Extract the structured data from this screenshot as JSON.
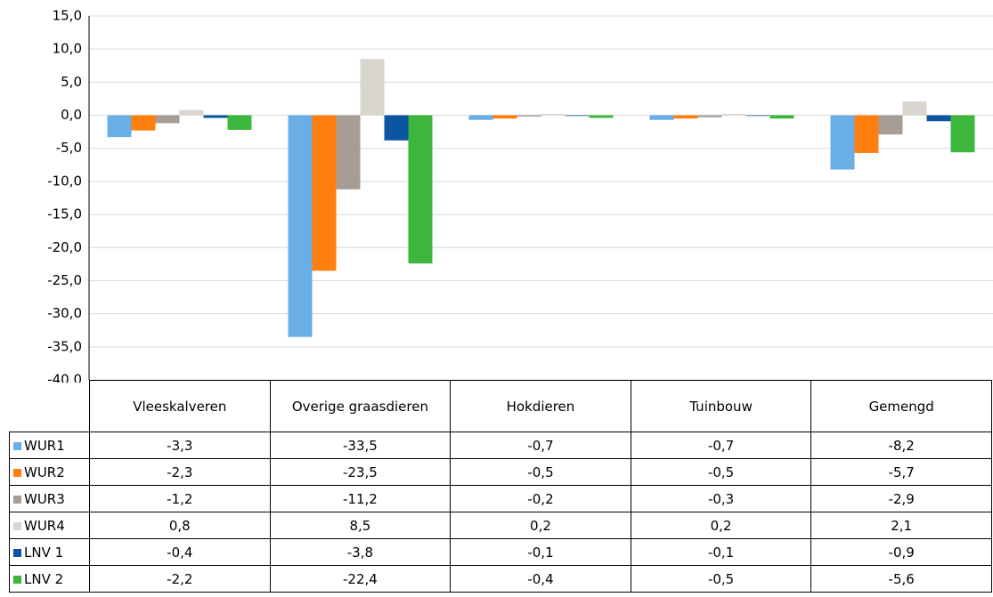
{
  "chart_data": {
    "type": "bar",
    "categories": [
      "Vleeskalveren",
      "Overige graasdieren",
      "Hokdieren",
      "Tuinbouw",
      "Gemengd"
    ],
    "series": [
      {
        "name": "WUR1",
        "color": "#6aaee6",
        "values": [
          -3.3,
          -33.5,
          -0.7,
          -0.7,
          -8.2
        ],
        "value_labels": [
          "-3,3",
          "-33,5",
          "-0,7",
          "-0,7",
          "-8,2"
        ]
      },
      {
        "name": "WUR2",
        "color": "#ff7f0e",
        "values": [
          -2.3,
          -23.5,
          -0.5,
          -0.5,
          -5.7
        ],
        "value_labels": [
          "-2,3",
          "-23,5",
          "-0,5",
          "-0,5",
          "-5,7"
        ]
      },
      {
        "name": "WUR3",
        "color": "#a59d96",
        "values": [
          -1.2,
          -11.2,
          -0.2,
          -0.3,
          -2.9
        ],
        "value_labels": [
          "-1,2",
          "-11,2",
          "-0,2",
          "-0,3",
          "-2,9"
        ]
      },
      {
        "name": "WUR4",
        "color": "#d9d6cf",
        "values": [
          0.8,
          8.5,
          0.2,
          0.2,
          2.1
        ],
        "value_labels": [
          "0,8",
          "8,5",
          "0,2",
          "0,2",
          "2,1"
        ]
      },
      {
        "name": "LNV 1",
        "color": "#0b56a3",
        "values": [
          -0.4,
          -3.8,
          -0.1,
          -0.1,
          -0.9
        ],
        "value_labels": [
          "-0,4",
          "-3,8",
          "-0,1",
          "-0,1",
          "-0,9"
        ]
      },
      {
        "name": "LNV 2",
        "color": "#3cb63c",
        "values": [
          -2.2,
          -22.4,
          -0.4,
          -0.5,
          -5.6
        ],
        "value_labels": [
          "-2,2",
          "-22,4",
          "-0,4",
          "-0,5",
          "-5,6"
        ]
      }
    ],
    "ylim": [
      -40,
      15
    ],
    "yticks": [
      {
        "value": -40,
        "label": "-40,0"
      },
      {
        "value": -35,
        "label": "-35,0"
      },
      {
        "value": -30,
        "label": "-30,0"
      },
      {
        "value": -25,
        "label": "-25,0"
      },
      {
        "value": -20,
        "label": "-20,0"
      },
      {
        "value": -15,
        "label": "-15,0"
      },
      {
        "value": -10,
        "label": "-10,0"
      },
      {
        "value": -5,
        "label": "-5,0"
      },
      {
        "value": 0,
        "label": "0,0"
      },
      {
        "value": 5,
        "label": "5,0"
      },
      {
        "value": 10,
        "label": "10,0"
      },
      {
        "value": 15,
        "label": "15,0"
      }
    ],
    "grid": true
  }
}
